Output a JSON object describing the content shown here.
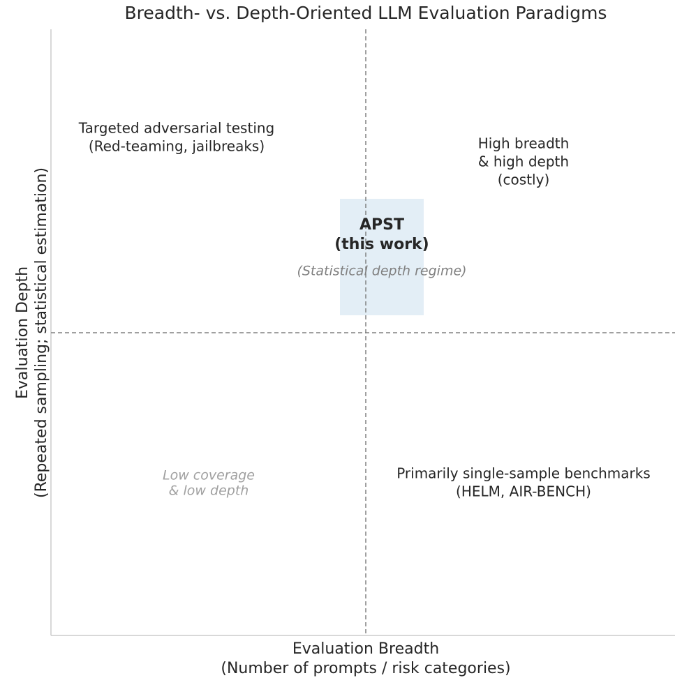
{
  "title": "Breadth- vs. Depth-Oriented LLM Evaluation Paradigms",
  "x_axis_label": [
    "Evaluation Breadth",
    "(Number of prompts / risk categories)"
  ],
  "y_axis_label": [
    "Evaluation Depth",
    "(Repeated sampling; statistical estimation)"
  ],
  "quadrants": {
    "top_left": [
      "Targeted adversarial testing",
      "(Red-teaming, jailbreaks)"
    ],
    "top_right": [
      "High breadth",
      "& high depth",
      "(costly)"
    ],
    "bottom_left": [
      "Low coverage",
      "& low depth"
    ],
    "bottom_right": [
      "Primarily single-sample benchmarks",
      "(HELM, AIR-BENCH)"
    ]
  },
  "highlight": {
    "label": [
      "APST",
      "(this work)"
    ],
    "note": "(Statistical depth regime)"
  }
}
